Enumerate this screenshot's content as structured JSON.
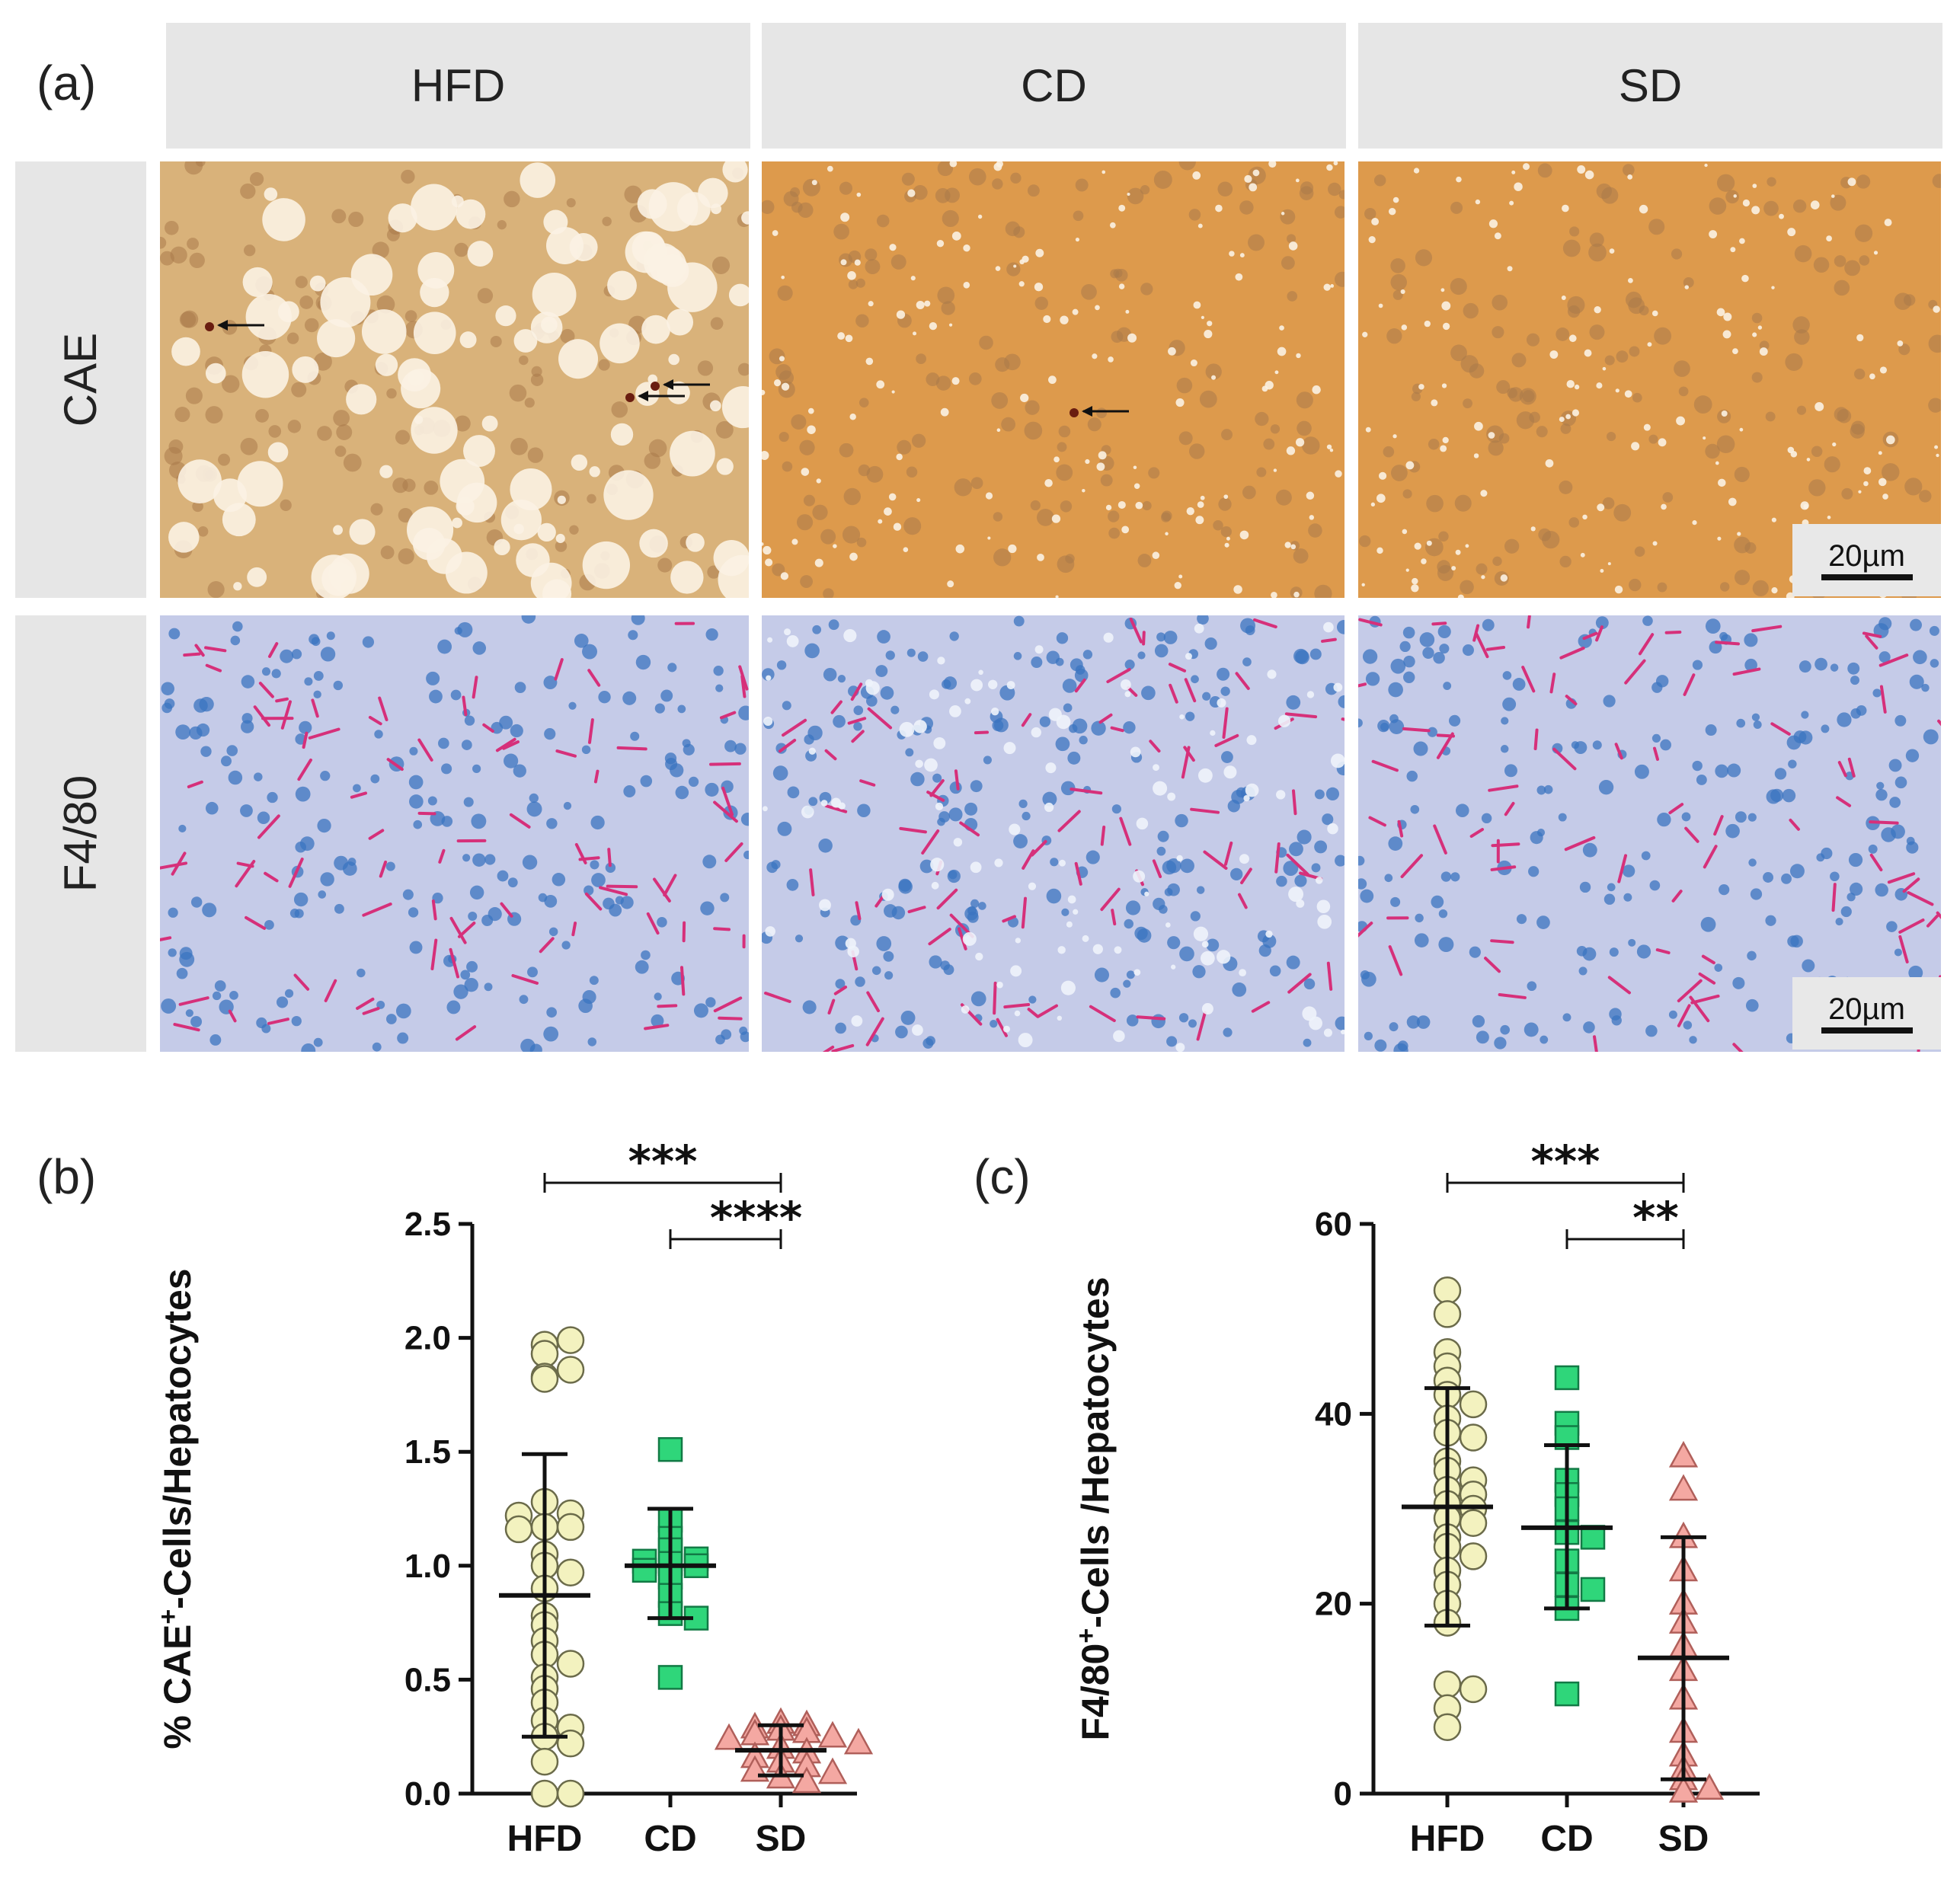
{
  "panels": {
    "a": "(a)",
    "b": "(b)",
    "c": "(c)"
  },
  "columns": [
    "HFD",
    "CD",
    "SD"
  ],
  "rows": [
    "CAE",
    "F4/80"
  ],
  "scalebar_label": "20µm",
  "colors": {
    "header_bg": "#e6e6e6",
    "cae_bg": "#dd9a4c",
    "hfd_cae_bg": "#d9b27a",
    "f480_bg": "#c5cbe8",
    "nucleus_blue": "#3b74c0",
    "f480_pink": "#d6307a",
    "hfd_marker": "#f3f2bf",
    "cd_marker": "#2fd67a",
    "sd_marker": "#f4a8a2"
  },
  "chart_data": [
    {
      "id": "b",
      "type": "scatter",
      "ylabel_prefix": "% CAE",
      "ylabel_sup": "+",
      "ylabel_suffix": "-Cells/Hepatocytes",
      "categories": [
        "HFD",
        "CD",
        "SD"
      ],
      "ylim": [
        0,
        2.5
      ],
      "yticks": [
        "0.0",
        "0.5",
        "1.0",
        "1.5",
        "2.0",
        "2.5"
      ],
      "series": [
        {
          "name": "HFD",
          "marker": "circle",
          "color": "#f3f2bf",
          "mean": 0.87,
          "sd_low": 0.25,
          "sd_high": 1.49,
          "values": [
            1.97,
            1.99,
            1.93,
            1.83,
            1.82,
            1.86,
            1.28,
            1.23,
            1.22,
            1.17,
            1.17,
            1.16,
            1.05,
            1.0,
            0.97,
            0.9,
            0.78,
            0.74,
            0.67,
            0.61,
            0.57,
            0.51,
            0.46,
            0.4,
            0.32,
            0.29,
            0.25,
            0.22,
            0.14,
            0.0,
            0.0
          ]
        },
        {
          "name": "CD",
          "marker": "square",
          "color": "#2fd67a",
          "mean": 1.0,
          "sd_low": 0.77,
          "sd_high": 1.25,
          "values": [
            1.51,
            1.2,
            1.12,
            1.07,
            1.03,
            1.02,
            1.01,
            1.0,
            0.98,
            0.95,
            0.87,
            0.79,
            0.77,
            0.51
          ]
        },
        {
          "name": "SD",
          "marker": "triangle",
          "color": "#f4a8a2",
          "mean": 0.19,
          "sd_low": 0.08,
          "sd_high": 0.3,
          "values": [
            0.31,
            0.3,
            0.29,
            0.28,
            0.27,
            0.26,
            0.25,
            0.24,
            0.22,
            0.2,
            0.18,
            0.16,
            0.14,
            0.12,
            0.1,
            0.09,
            0.07,
            0.05
          ]
        }
      ],
      "significance": [
        {
          "from": "HFD",
          "to": "SD",
          "label": "***"
        },
        {
          "from": "CD",
          "to": "SD",
          "label": "****"
        }
      ]
    },
    {
      "id": "c",
      "type": "scatter",
      "ylabel_prefix": "F4/80",
      "ylabel_sup": "+",
      "ylabel_suffix": "-Cells /Hepatocytes",
      "categories": [
        "HFD",
        "CD",
        "SD"
      ],
      "ylim": [
        0,
        60
      ],
      "yticks": [
        "0",
        "20",
        "40",
        "60"
      ],
      "series": [
        {
          "name": "HFD",
          "marker": "circle",
          "color": "#f3f2bf",
          "mean": 30.2,
          "sd_low": 17.7,
          "sd_high": 42.7,
          "values": [
            53.0,
            50.5,
            46.5,
            45.0,
            43.5,
            42.0,
            41.0,
            39.5,
            38.0,
            37.5,
            35.0,
            34.0,
            33.0,
            32.0,
            31.5,
            30.5,
            30.0,
            29.0,
            28.5,
            27.0,
            26.0,
            25.0,
            23.5,
            22.0,
            20.0,
            18.0,
            11.5,
            11.0,
            9.0,
            7.0
          ]
        },
        {
          "name": "CD",
          "marker": "square",
          "color": "#2fd67a",
          "mean": 28.0,
          "sd_low": 19.5,
          "sd_high": 36.7,
          "values": [
            43.8,
            39.0,
            37.5,
            33.0,
            31.5,
            30.0,
            27.5,
            27.0,
            24.5,
            22.0,
            21.5,
            19.5,
            10.5
          ]
        },
        {
          "name": "SD",
          "marker": "triangle",
          "color": "#f4a8a2",
          "mean": 14.3,
          "sd_low": 1.5,
          "sd_high": 27.0,
          "values": [
            35.5,
            32.0,
            27.0,
            23.5,
            20.0,
            18.0,
            15.5,
            13.0,
            10.0,
            6.5,
            4.0,
            2.5,
            1.5,
            0.5,
            0.2
          ]
        }
      ],
      "significance": [
        {
          "from": "HFD",
          "to": "SD",
          "label": "***"
        },
        {
          "from": "CD",
          "to": "SD",
          "label": "**"
        }
      ]
    }
  ]
}
